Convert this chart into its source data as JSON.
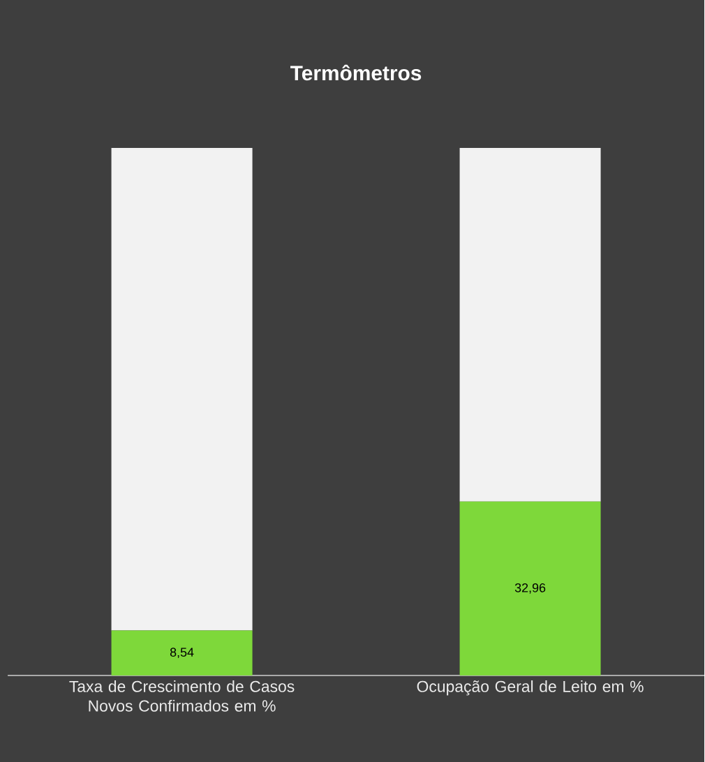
{
  "chart_data": {
    "type": "bar",
    "title": "Termômetros",
    "stacked": true,
    "categories": [
      "Taxa de Crescimento de Casos Novos Confirmados em %",
      "Ocupação Geral de Leito em %"
    ],
    "series": [
      {
        "color": "#7ed83a",
        "values": [
          8.54,
          32.96
        ],
        "value_labels": [
          "8,54",
          "32,96"
        ]
      },
      {
        "color": "#f2f2f2",
        "values": [
          91.46,
          67.04
        ]
      }
    ]
  }
}
